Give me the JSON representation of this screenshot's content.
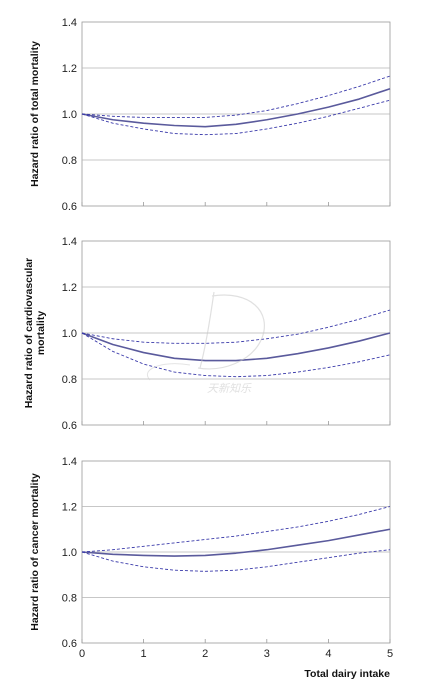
{
  "chart_data": [
    {
      "type": "line",
      "ylabel": [
        "Hazard ratio of total mortality"
      ],
      "xlim": [
        0,
        5
      ],
      "ylim": [
        0.6,
        1.4
      ],
      "yticks": [
        "0.6",
        "0.8",
        "1.0",
        "1.2",
        "1.4"
      ],
      "grid": "horizontal",
      "x": [
        0,
        0.5,
        1,
        1.5,
        2,
        2.5,
        3,
        3.5,
        4,
        4.5,
        5
      ],
      "series": [
        {
          "style": "solid",
          "values": [
            1.0,
            0.975,
            0.96,
            0.95,
            0.945,
            0.955,
            0.975,
            1.0,
            1.03,
            1.065,
            1.11
          ]
        },
        {
          "style": "dashed",
          "values": [
            1.0,
            0.99,
            0.985,
            0.985,
            0.985,
            0.995,
            1.015,
            1.045,
            1.08,
            1.12,
            1.165
          ]
        },
        {
          "style": "dashed",
          "values": [
            1.0,
            0.96,
            0.935,
            0.915,
            0.91,
            0.915,
            0.935,
            0.96,
            0.99,
            1.025,
            1.06
          ]
        }
      ]
    },
    {
      "type": "line",
      "ylabel": [
        "Hazard ratio of cardiovascular",
        "mortality"
      ],
      "xlim": [
        0,
        5
      ],
      "ylim": [
        0.6,
        1.4
      ],
      "yticks": [
        "0.6",
        "0.8",
        "1.0",
        "1.2",
        "1.4"
      ],
      "grid": "horizontal",
      "x": [
        0,
        0.5,
        1,
        1.5,
        2,
        2.5,
        3,
        3.5,
        4,
        4.5,
        5
      ],
      "series": [
        {
          "style": "solid",
          "values": [
            1.0,
            0.95,
            0.915,
            0.89,
            0.88,
            0.88,
            0.89,
            0.91,
            0.935,
            0.965,
            1.0
          ]
        },
        {
          "style": "dashed",
          "values": [
            1.0,
            0.975,
            0.96,
            0.955,
            0.955,
            0.96,
            0.975,
            0.995,
            1.025,
            1.06,
            1.1
          ]
        },
        {
          "style": "dashed",
          "values": [
            1.0,
            0.92,
            0.865,
            0.83,
            0.815,
            0.81,
            0.815,
            0.83,
            0.85,
            0.875,
            0.905
          ]
        }
      ]
    },
    {
      "type": "line",
      "ylabel": [
        "Hazard ratio of cancer mortality"
      ],
      "xlabel": "Total dairy intake",
      "xlim": [
        0,
        5
      ],
      "ylim": [
        0.6,
        1.4
      ],
      "xticks": [
        "0",
        "1",
        "2",
        "3",
        "4",
        "5"
      ],
      "yticks": [
        "0.6",
        "0.8",
        "1.0",
        "1.2",
        "1.4"
      ],
      "grid": "horizontal",
      "x": [
        0,
        0.5,
        1,
        1.5,
        2,
        2.5,
        3,
        3.5,
        4,
        4.5,
        5
      ],
      "series": [
        {
          "style": "solid",
          "values": [
            1.0,
            0.99,
            0.985,
            0.982,
            0.985,
            0.995,
            1.01,
            1.03,
            1.05,
            1.075,
            1.1
          ]
        },
        {
          "style": "dashed",
          "values": [
            1.0,
            1.01,
            1.025,
            1.04,
            1.055,
            1.07,
            1.09,
            1.11,
            1.135,
            1.165,
            1.2
          ]
        },
        {
          "style": "dashed",
          "values": [
            1.0,
            0.96,
            0.935,
            0.92,
            0.915,
            0.92,
            0.935,
            0.955,
            0.975,
            0.995,
            1.01
          ]
        }
      ]
    }
  ],
  "colors": {
    "line": "#5a5a9c",
    "dashed": "#3a3aaa",
    "grid": "#b4b4b4",
    "frame": "#999999"
  },
  "watermark_text": "天新知乐"
}
